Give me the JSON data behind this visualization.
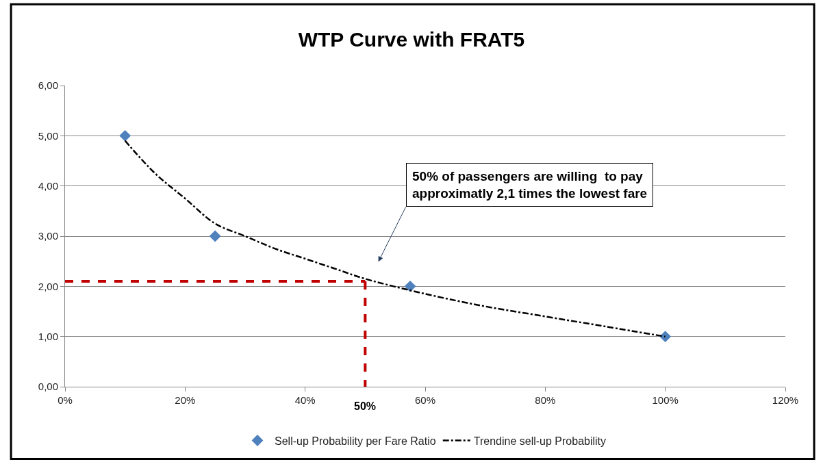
{
  "chart_data": {
    "type": "scatter",
    "title": "WTP Curve with FRAT5",
    "series": [
      {
        "name": "Sell-up Probability per Fare Ratio",
        "color": "#4f81bd",
        "marker": "diamond",
        "x": [
          10,
          25,
          57.5,
          100
        ],
        "values": [
          5.0,
          3.0,
          2.0,
          1.0
        ]
      },
      {
        "name": "Trendine sell-up Probability",
        "type": "line",
        "color": "#000000",
        "marker": "none",
        "line_style": "dashdot",
        "x": [
          10,
          15,
          20,
          25,
          30,
          35,
          40,
          45,
          50,
          60,
          70,
          80,
          90,
          100
        ],
        "values": [
          4.9,
          4.25,
          3.75,
          3.25,
          3.0,
          2.75,
          2.55,
          2.35,
          2.15,
          1.85,
          1.6,
          1.4,
          1.2,
          1.0
        ]
      },
      {
        "type": "line",
        "color": "#c00000",
        "marker": "none",
        "line_style": "dashed",
        "x": [
          0,
          50
        ],
        "values": [
          2.1,
          2.1
        ]
      },
      {
        "type": "line",
        "color": "#c00000",
        "marker": "none",
        "line_style": "dashed",
        "x": [
          50,
          50
        ],
        "values": [
          2.1,
          0
        ]
      }
    ],
    "annotations": [
      "50% of passengers are willing  to pay\napproximatly 2,1 times the lowest fare",
      {
        "text": "50%",
        "x": 50,
        "y": 0
      }
    ],
    "xlim": [
      0,
      120
    ],
    "xticks": [
      {
        "value": 0,
        "label": "0%"
      },
      {
        "value": 20,
        "label": "20%"
      },
      {
        "value": 40,
        "label": "40%"
      },
      {
        "value": 60,
        "label": "60%"
      },
      {
        "value": 80,
        "label": "80%"
      },
      {
        "value": 100,
        "label": "100%"
      },
      {
        "value": 120,
        "label": "120%"
      }
    ],
    "ylim": [
      0,
      6
    ],
    "yticks": [
      {
        "value": 0,
        "label": "0,00"
      },
      {
        "value": 1,
        "label": "1,00"
      },
      {
        "value": 2,
        "label": "2,00"
      },
      {
        "value": 3,
        "label": "3,00"
      },
      {
        "value": 4,
        "label": "4,00"
      },
      {
        "value": 5,
        "label": "5,00"
      },
      {
        "value": 6,
        "label": "6,00"
      }
    ],
    "grid": "y",
    "legend": "bottom"
  }
}
